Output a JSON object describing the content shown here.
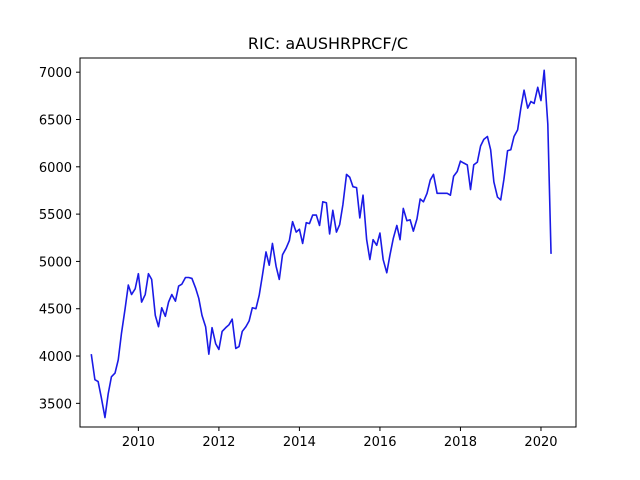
{
  "chart_data": {
    "type": "line",
    "title": "RIC: aAUSHRPRCF/C",
    "xlabel": "",
    "ylabel": "",
    "xlim": [
      2008.55,
      2020.87
    ],
    "ylim": [
      3250,
      7150
    ],
    "x_ticks": [
      2010,
      2012,
      2014,
      2016,
      2018,
      2020
    ],
    "x_tick_labels": [
      "2010",
      "2012",
      "2014",
      "2016",
      "2018",
      "2020"
    ],
    "y_ticks": [
      3500,
      4000,
      4500,
      5000,
      5500,
      6000,
      6500,
      7000
    ],
    "y_tick_labels": [
      "3500",
      "4000",
      "4500",
      "5000",
      "5500",
      "6000",
      "6500",
      "7000"
    ],
    "grid": false,
    "legend": "none",
    "series": [
      {
        "color": "#1a1ae6",
        "x": [
          2008.83,
          2008.92,
          2009.0,
          2009.08,
          2009.17,
          2009.25,
          2009.33,
          2009.42,
          2009.5,
          2009.58,
          2009.67,
          2009.75,
          2009.83,
          2009.92,
          2010.0,
          2010.08,
          2010.17,
          2010.25,
          2010.33,
          2010.42,
          2010.5,
          2010.58,
          2010.67,
          2010.75,
          2010.83,
          2010.92,
          2011.0,
          2011.08,
          2011.17,
          2011.25,
          2011.33,
          2011.42,
          2011.5,
          2011.58,
          2011.67,
          2011.75,
          2011.83,
          2011.92,
          2012.0,
          2012.08,
          2012.17,
          2012.25,
          2012.33,
          2012.42,
          2012.5,
          2012.58,
          2012.67,
          2012.75,
          2012.83,
          2012.92,
          2013.0,
          2013.08,
          2013.17,
          2013.25,
          2013.33,
          2013.42,
          2013.5,
          2013.58,
          2013.67,
          2013.75,
          2013.83,
          2013.92,
          2014.0,
          2014.08,
          2014.17,
          2014.25,
          2014.33,
          2014.42,
          2014.5,
          2014.58,
          2014.67,
          2014.75,
          2014.83,
          2014.92,
          2015.0,
          2015.08,
          2015.17,
          2015.25,
          2015.33,
          2015.42,
          2015.5,
          2015.58,
          2015.67,
          2015.75,
          2015.83,
          2015.92,
          2016.0,
          2016.08,
          2016.17,
          2016.25,
          2016.33,
          2016.42,
          2016.5,
          2016.58,
          2016.67,
          2016.75,
          2016.83,
          2016.92,
          2017.0,
          2017.08,
          2017.17,
          2017.25,
          2017.33,
          2017.42,
          2017.5,
          2017.58,
          2017.67,
          2017.75,
          2017.83,
          2017.92,
          2018.0,
          2018.08,
          2018.17,
          2018.25,
          2018.33,
          2018.42,
          2018.5,
          2018.58,
          2018.67,
          2018.75,
          2018.83,
          2018.92,
          2019.0,
          2019.08,
          2019.17,
          2019.25,
          2019.33,
          2019.42,
          2019.5,
          2019.58,
          2019.67,
          2019.75,
          2019.83,
          2019.92,
          2020.0,
          2020.08,
          2020.17,
          2020.25
        ],
        "y": [
          4020,
          3750,
          3730,
          3560,
          3350,
          3600,
          3780,
          3820,
          3960,
          4240,
          4500,
          4750,
          4650,
          4710,
          4870,
          4570,
          4650,
          4870,
          4810,
          4430,
          4310,
          4510,
          4420,
          4570,
          4650,
          4580,
          4740,
          4760,
          4830,
          4830,
          4820,
          4720,
          4610,
          4430,
          4310,
          4020,
          4300,
          4130,
          4070,
          4260,
          4300,
          4330,
          4390,
          4080,
          4100,
          4260,
          4310,
          4370,
          4510,
          4500,
          4640,
          4850,
          5100,
          4960,
          5190,
          4950,
          4810,
          5070,
          5140,
          5220,
          5420,
          5310,
          5340,
          5190,
          5410,
          5400,
          5490,
          5490,
          5380,
          5630,
          5620,
          5290,
          5540,
          5310,
          5390,
          5600,
          5920,
          5890,
          5790,
          5780,
          5460,
          5700,
          5230,
          5020,
          5230,
          5170,
          5300,
          5020,
          4880,
          5070,
          5240,
          5380,
          5230,
          5560,
          5430,
          5440,
          5320,
          5450,
          5660,
          5630,
          5720,
          5860,
          5920,
          5720,
          5720,
          5720,
          5720,
          5700,
          5900,
          5950,
          6060,
          6040,
          6020,
          5760,
          6020,
          6050,
          6220,
          6290,
          6320,
          6180,
          5840,
          5680,
          5650,
          5870,
          6170,
          6180,
          6320,
          6390,
          6620,
          6810,
          6620,
          6690,
          6670,
          6840,
          6700,
          7020,
          6450,
          5080
        ]
      }
    ]
  }
}
